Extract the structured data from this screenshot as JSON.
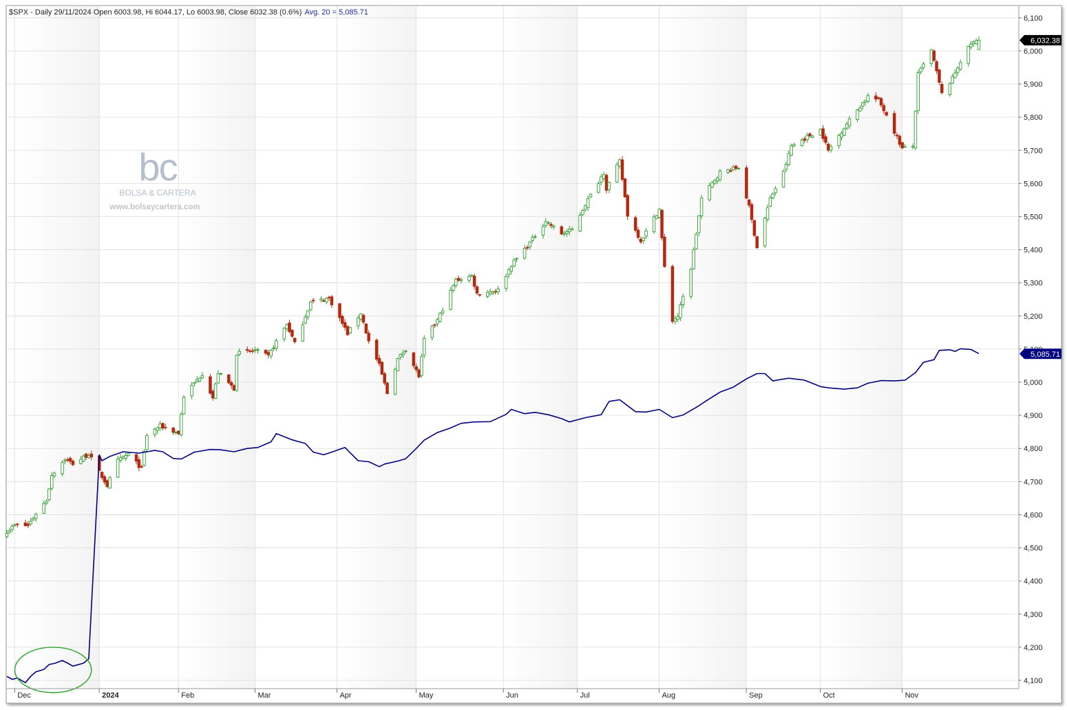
{
  "header": {
    "symbol": "$SPX",
    "text": "$SPX - Daily 29/11/2024 Open 6003.98, Hi 6044.17, Lo 6003.98, Close 6032.38 (0.6%)",
    "ma_text": "Avg. 20 = 5,085.71"
  },
  "watermark": {
    "logo": "bc",
    "brand": "BOLSA & CARTERA",
    "url": "www.bolsaycartera.com"
  },
  "badges": {
    "close": "6,032.38",
    "ma": "5,085.71"
  },
  "colors": {
    "up": "#2e9e2e",
    "down": "#b22a10",
    "ma_line": "#000080",
    "highlight_ellipse": "#3aaa3a",
    "band": "#eeeeee",
    "grid": "#dcdcdc"
  },
  "chart_data": {
    "type": "candlestick",
    "title": "$SPX - Daily 29/11/2024",
    "x_start": "2023-11-27",
    "x_end": "2024-11-29",
    "ylim": [
      4075,
      6135
    ],
    "y_ticks": [
      4100,
      4200,
      4300,
      4400,
      4500,
      4600,
      4700,
      4800,
      4900,
      5000,
      5100,
      5200,
      5300,
      5400,
      5500,
      5600,
      5700,
      5800,
      5900,
      6000,
      6100
    ],
    "y_tick_labels": [
      "4,100",
      "4,200",
      "4,300",
      "4,400",
      "4,500",
      "4,600",
      "4,700",
      "4,800",
      "4,900",
      "5,000",
      "5,100",
      "5,200",
      "5,300",
      "5,400",
      "5,500",
      "5,600",
      "5,700",
      "5,800",
      "5,900",
      "6,000",
      "6,100"
    ],
    "x_ticks": [
      {
        "label": "Dec",
        "date": "2023-12-01"
      },
      {
        "label": "2024",
        "date": "2024-01-02"
      },
      {
        "label": "Feb",
        "date": "2024-02-01"
      },
      {
        "label": "Mar",
        "date": "2024-03-01"
      },
      {
        "label": "Apr",
        "date": "2024-04-01"
      },
      {
        "label": "May",
        "date": "2024-05-01"
      },
      {
        "label": "Jun",
        "date": "2024-06-03"
      },
      {
        "label": "Jul",
        "date": "2024-07-01"
      },
      {
        "label": "Aug",
        "date": "2024-08-01"
      },
      {
        "label": "Sep",
        "date": "2024-09-03"
      },
      {
        "label": "Oct",
        "date": "2024-10-01"
      },
      {
        "label": "Nov",
        "date": "2024-11-01"
      }
    ],
    "grid": true,
    "last_bar": {
      "date": "2024-11-29",
      "open": 6003.98,
      "high": 6044.17,
      "low": 6003.98,
      "close": 6032.38,
      "change_pct": 0.6
    },
    "close_path": [
      [
        "2023-11-27",
        4550
      ],
      [
        "2023-11-30",
        4568
      ],
      [
        "2023-12-05",
        4567
      ],
      [
        "2023-12-08",
        4604
      ],
      [
        "2023-12-12",
        4643
      ],
      [
        "2023-12-14",
        4720
      ],
      [
        "2023-12-19",
        4768
      ],
      [
        "2023-12-22",
        4754
      ],
      [
        "2023-12-28",
        4783
      ],
      [
        "2024-01-04",
        4688
      ],
      [
        "2024-01-08",
        4763
      ],
      [
        "2024-01-12",
        4783
      ],
      [
        "2024-01-17",
        4739
      ],
      [
        "2024-01-19",
        4840
      ],
      [
        "2024-01-24",
        4868
      ],
      [
        "2024-01-31",
        4846
      ],
      [
        "2024-02-02",
        4958
      ],
      [
        "2024-02-09",
        5026
      ],
      [
        "2024-02-13",
        4953
      ],
      [
        "2024-02-15",
        5029
      ],
      [
        "2024-02-21",
        4981
      ],
      [
        "2024-02-22",
        5087
      ],
      [
        "2024-02-29",
        5096
      ],
      [
        "2024-03-05",
        5078
      ],
      [
        "2024-03-08",
        5123
      ],
      [
        "2024-03-12",
        5175
      ],
      [
        "2024-03-15",
        5117
      ],
      [
        "2024-03-21",
        5241
      ],
      [
        "2024-03-28",
        5254
      ],
      [
        "2024-04-04",
        5147
      ],
      [
        "2024-04-09",
        5209
      ],
      [
        "2024-04-12",
        5123
      ],
      [
        "2024-04-16",
        5051
      ],
      [
        "2024-04-19",
        4967
      ],
      [
        "2024-04-23",
        5070
      ],
      [
        "2024-04-26",
        5100
      ],
      [
        "2024-05-01",
        5018
      ],
      [
        "2024-05-03",
        5128
      ],
      [
        "2024-05-08",
        5187
      ],
      [
        "2024-05-15",
        5308
      ],
      [
        "2024-05-21",
        5321
      ],
      [
        "2024-05-23",
        5267
      ],
      [
        "2024-05-31",
        5278
      ],
      [
        "2024-06-05",
        5354
      ],
      [
        "2024-06-12",
        5421
      ],
      [
        "2024-06-18",
        5487
      ],
      [
        "2024-06-24",
        5448
      ],
      [
        "2024-06-28",
        5460
      ],
      [
        "2024-07-03",
        5537
      ],
      [
        "2024-07-10",
        5633
      ],
      [
        "2024-07-11",
        5584
      ],
      [
        "2024-07-16",
        5667
      ],
      [
        "2024-07-19",
        5505
      ],
      [
        "2024-07-24",
        5427
      ],
      [
        "2024-07-31",
        5522
      ],
      [
        "2024-08-02",
        5346
      ],
      [
        "2024-08-05",
        5186
      ],
      [
        "2024-08-07",
        5199
      ],
      [
        "2024-08-12",
        5344
      ],
      [
        "2024-08-16",
        5554
      ],
      [
        "2024-08-23",
        5634
      ],
      [
        "2024-08-30",
        5648
      ],
      [
        "2024-09-03",
        5529
      ],
      [
        "2024-09-06",
        5408
      ],
      [
        "2024-09-11",
        5554
      ],
      [
        "2024-09-16",
        5633
      ],
      [
        "2024-09-19",
        5713
      ],
      [
        "2024-09-26",
        5745
      ],
      [
        "2024-09-30",
        5762
      ],
      [
        "2024-10-03",
        5699
      ],
      [
        "2024-10-10",
        5780
      ],
      [
        "2024-10-18",
        5864
      ],
      [
        "2024-10-22",
        5851
      ],
      [
        "2024-10-25",
        5808
      ],
      [
        "2024-10-31",
        5705
      ],
      [
        "2024-11-04",
        5712
      ],
      [
        "2024-11-06",
        5929
      ],
      [
        "2024-11-11",
        6001
      ],
      [
        "2024-11-15",
        5870
      ],
      [
        "2024-11-19",
        5917
      ],
      [
        "2024-11-22",
        5969
      ],
      [
        "2024-11-26",
        6021
      ],
      [
        "2024-11-29",
        6032
      ]
    ],
    "series": [
      {
        "name": "Avg. 20",
        "last_value": 5085.71,
        "points": [
          [
            "2023-11-27",
            4112
          ],
          [
            "2023-11-29",
            4103
          ],
          [
            "2023-12-01",
            4107
          ],
          [
            "2023-12-04",
            4093
          ],
          [
            "2023-12-06",
            4112
          ],
          [
            "2023-12-08",
            4126
          ],
          [
            "2023-12-11",
            4133
          ],
          [
            "2023-12-13",
            4148
          ],
          [
            "2023-12-15",
            4151
          ],
          [
            "2023-12-18",
            4160
          ],
          [
            "2023-12-20",
            4152
          ],
          [
            "2023-12-22",
            4143
          ],
          [
            "2023-12-26",
            4152
          ],
          [
            "2023-12-28",
            4165
          ],
          [
            "2024-01-01",
            4780
          ],
          [
            "2024-01-02",
            4763
          ],
          [
            "2024-01-05",
            4776
          ],
          [
            "2024-01-10",
            4790
          ],
          [
            "2024-01-16",
            4786
          ],
          [
            "2024-01-22",
            4794
          ],
          [
            "2024-01-25",
            4790
          ],
          [
            "2024-01-29",
            4770
          ],
          [
            "2024-02-01",
            4768
          ],
          [
            "2024-02-06",
            4789
          ],
          [
            "2024-02-12",
            4797
          ],
          [
            "2024-02-16",
            4796
          ],
          [
            "2024-02-21",
            4790
          ],
          [
            "2024-02-26",
            4800
          ],
          [
            "2024-03-01",
            4803
          ],
          [
            "2024-03-06",
            4820
          ],
          [
            "2024-03-08",
            4845
          ],
          [
            "2024-03-14",
            4826
          ],
          [
            "2024-03-19",
            4815
          ],
          [
            "2024-03-22",
            4789
          ],
          [
            "2024-03-26",
            4781
          ],
          [
            "2024-03-29",
            4789
          ],
          [
            "2024-04-03",
            4803
          ],
          [
            "2024-04-08",
            4763
          ],
          [
            "2024-04-12",
            4760
          ],
          [
            "2024-04-16",
            4745
          ],
          [
            "2024-04-18",
            4753
          ],
          [
            "2024-04-23",
            4762
          ],
          [
            "2024-04-26",
            4769
          ],
          [
            "2024-04-30",
            4800
          ],
          [
            "2024-05-03",
            4825
          ],
          [
            "2024-05-08",
            4848
          ],
          [
            "2024-05-13",
            4862
          ],
          [
            "2024-05-17",
            4876
          ],
          [
            "2024-05-22",
            4880
          ],
          [
            "2024-05-28",
            4881
          ],
          [
            "2024-06-03",
            4903
          ],
          [
            "2024-06-05",
            4918
          ],
          [
            "2024-06-10",
            4905
          ],
          [
            "2024-06-14",
            4909
          ],
          [
            "2024-06-19",
            4902
          ],
          [
            "2024-06-24",
            4890
          ],
          [
            "2024-06-27",
            4880
          ],
          [
            "2024-07-03",
            4893
          ],
          [
            "2024-07-09",
            4902
          ],
          [
            "2024-07-12",
            4942
          ],
          [
            "2024-07-16",
            4947
          ],
          [
            "2024-07-22",
            4911
          ],
          [
            "2024-07-26",
            4910
          ],
          [
            "2024-07-31",
            4918
          ],
          [
            "2024-08-05",
            4893
          ],
          [
            "2024-08-09",
            4901
          ],
          [
            "2024-08-14",
            4924
          ],
          [
            "2024-08-19",
            4950
          ],
          [
            "2024-08-23",
            4970
          ],
          [
            "2024-08-28",
            4985
          ],
          [
            "2024-09-02",
            5010
          ],
          [
            "2024-09-06",
            5026
          ],
          [
            "2024-09-09",
            5026
          ],
          [
            "2024-09-12",
            5004
          ],
          [
            "2024-09-18",
            5012
          ],
          [
            "2024-09-24",
            5006
          ],
          [
            "2024-09-30",
            4987
          ],
          [
            "2024-10-03",
            4983
          ],
          [
            "2024-10-09",
            4979
          ],
          [
            "2024-10-14",
            4983
          ],
          [
            "2024-10-18",
            4997
          ],
          [
            "2024-10-23",
            5005
          ],
          [
            "2024-10-28",
            5004
          ],
          [
            "2024-11-01",
            5006
          ],
          [
            "2024-11-05",
            5029
          ],
          [
            "2024-11-08",
            5060
          ],
          [
            "2024-11-12",
            5068
          ],
          [
            "2024-11-14",
            5096
          ],
          [
            "2024-11-18",
            5098
          ],
          [
            "2024-11-20",
            5093
          ],
          [
            "2024-11-22",
            5101
          ],
          [
            "2024-11-26",
            5099
          ],
          [
            "2024-11-29",
            5086
          ]
        ]
      }
    ],
    "annotations": [
      {
        "type": "ellipse",
        "color": "green",
        "x_from": "2023-11-30",
        "x_to": "2023-12-29",
        "y_from": 4063,
        "y_to": 4200
      }
    ]
  }
}
